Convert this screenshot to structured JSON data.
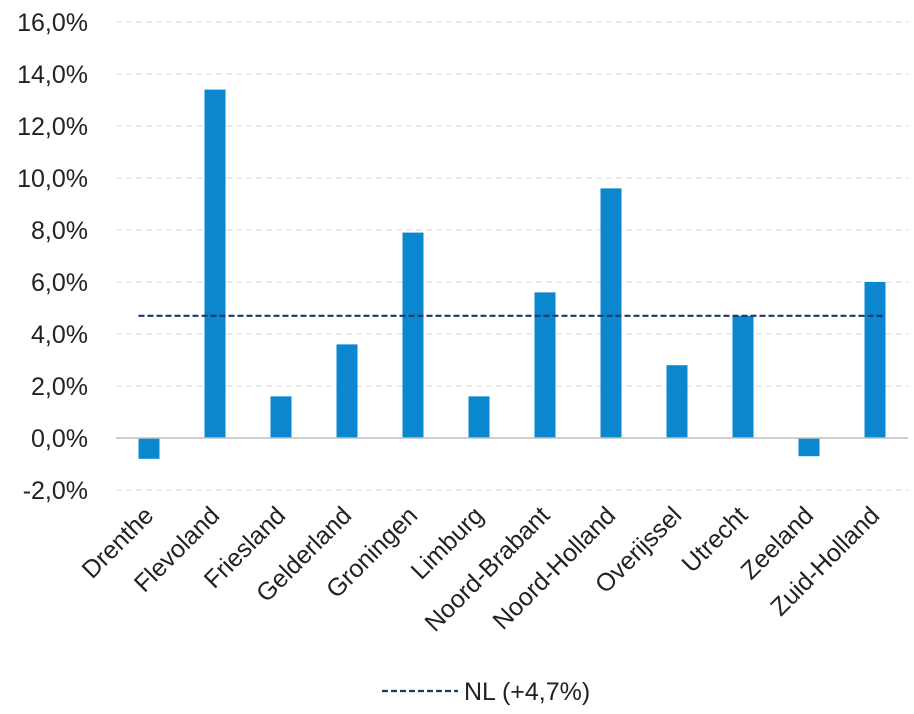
{
  "chart_data": {
    "type": "bar",
    "categories": [
      "Drenthe",
      "Flevoland",
      "Friesland",
      "Gelderland",
      "Groningen",
      "Limburg",
      "Noord-Brabant",
      "Noord-Holland",
      "Overijssel",
      "Utrecht",
      "Zeeland",
      "Zuid-Holland"
    ],
    "values": [
      -0.8,
      13.4,
      1.6,
      3.6,
      7.9,
      1.6,
      5.6,
      9.6,
      2.8,
      4.7,
      -0.7,
      6.0
    ],
    "ylim": [
      -2.0,
      16.0
    ],
    "yticks": [
      -2.0,
      0.0,
      2.0,
      4.0,
      6.0,
      8.0,
      10.0,
      12.0,
      14.0,
      16.0
    ],
    "ytick_labels": [
      "-2,0%",
      "0,0%",
      "2,0%",
      "4,0%",
      "6,0%",
      "8,0%",
      "10,0%",
      "12,0%",
      "14,0%",
      "16,0%"
    ],
    "reference_line": {
      "value": 4.7,
      "label": "NL (+4,7%)",
      "style": "dashed",
      "color": "#1f3864"
    },
    "bar_color": "#0a87cf",
    "grid": true,
    "grid_color": "#d9d9d9",
    "legend_position": "bottom-center",
    "xlabel": "",
    "ylabel": "",
    "title": ""
  }
}
